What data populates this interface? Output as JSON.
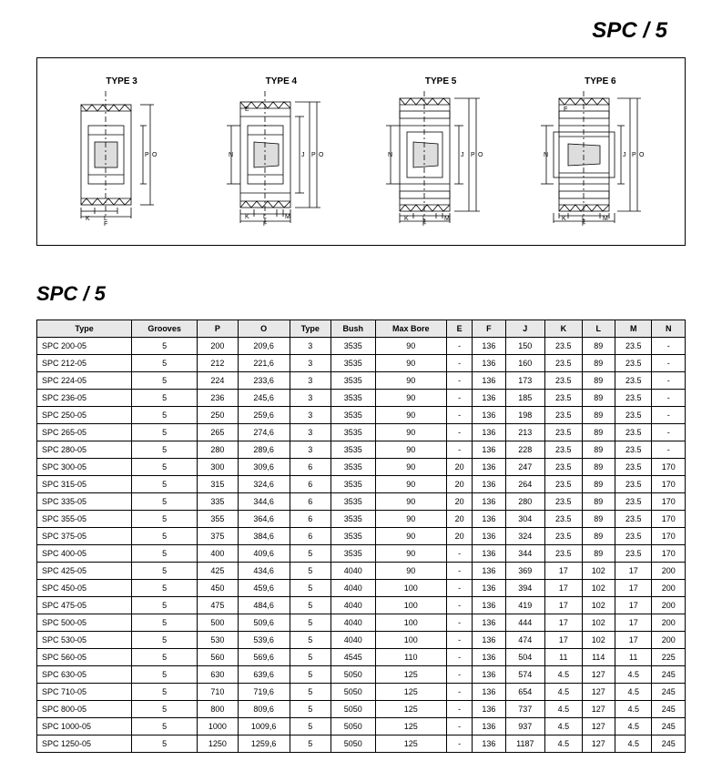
{
  "header_title": "SPC / 5",
  "section_title": "SPC / 5",
  "diagrams": {
    "labels": [
      "TYPE 3",
      "TYPE 4",
      "TYPE 5",
      "TYPE 6"
    ],
    "dim_labels": {
      "K": "K",
      "L": "L",
      "F": "F",
      "M": "M",
      "N": "N",
      "E": "E",
      "J": "J",
      "P": "P",
      "O": "O"
    }
  },
  "table": {
    "columns": [
      "Type",
      "Grooves",
      "P",
      "O",
      "Type",
      "Bush",
      "Max Bore",
      "E",
      "F",
      "J",
      "K",
      "L",
      "M",
      "N"
    ],
    "rows": [
      [
        "SPC  200-05",
        "5",
        "200",
        "209,6",
        "3",
        "3535",
        "90",
        "-",
        "136",
        "150",
        "23.5",
        "89",
        "23.5",
        "-"
      ],
      [
        "SPC  212-05",
        "5",
        "212",
        "221,6",
        "3",
        "3535",
        "90",
        "-",
        "136",
        "160",
        "23.5",
        "89",
        "23.5",
        "-"
      ],
      [
        "SPC  224-05",
        "5",
        "224",
        "233,6",
        "3",
        "3535",
        "90",
        "-",
        "136",
        "173",
        "23.5",
        "89",
        "23.5",
        "-"
      ],
      [
        "SPC  236-05",
        "5",
        "236",
        "245,6",
        "3",
        "3535",
        "90",
        "-",
        "136",
        "185",
        "23.5",
        "89",
        "23.5",
        "-"
      ],
      [
        "SPC  250-05",
        "5",
        "250",
        "259,6",
        "3",
        "3535",
        "90",
        "-",
        "136",
        "198",
        "23.5",
        "89",
        "23.5",
        "-"
      ],
      [
        "SPC  265-05",
        "5",
        "265",
        "274,6",
        "3",
        "3535",
        "90",
        "-",
        "136",
        "213",
        "23.5",
        "89",
        "23.5",
        "-"
      ],
      [
        "SPC  280-05",
        "5",
        "280",
        "289,6",
        "3",
        "3535",
        "90",
        "-",
        "136",
        "228",
        "23.5",
        "89",
        "23.5",
        "-"
      ],
      [
        "SPC  300-05",
        "5",
        "300",
        "309,6",
        "6",
        "3535",
        "90",
        "20",
        "136",
        "247",
        "23.5",
        "89",
        "23.5",
        "170"
      ],
      [
        "SPC  315-05",
        "5",
        "315",
        "324,6",
        "6",
        "3535",
        "90",
        "20",
        "136",
        "264",
        "23.5",
        "89",
        "23.5",
        "170"
      ],
      [
        "SPC  335-05",
        "5",
        "335",
        "344,6",
        "6",
        "3535",
        "90",
        "20",
        "136",
        "280",
        "23.5",
        "89",
        "23.5",
        "170"
      ],
      [
        "SPC  355-05",
        "5",
        "355",
        "364,6",
        "6",
        "3535",
        "90",
        "20",
        "136",
        "304",
        "23.5",
        "89",
        "23.5",
        "170"
      ],
      [
        "SPC  375-05",
        "5",
        "375",
        "384,6",
        "6",
        "3535",
        "90",
        "20",
        "136",
        "324",
        "23.5",
        "89",
        "23.5",
        "170"
      ],
      [
        "SPC  400-05",
        "5",
        "400",
        "409,6",
        "5",
        "3535",
        "90",
        "-",
        "136",
        "344",
        "23.5",
        "89",
        "23.5",
        "170"
      ],
      [
        "SPC  425-05",
        "5",
        "425",
        "434,6",
        "5",
        "4040",
        "90",
        "-",
        "136",
        "369",
        "17",
        "102",
        "17",
        "200"
      ],
      [
        "SPC  450-05",
        "5",
        "450",
        "459,6",
        "5",
        "4040",
        "100",
        "-",
        "136",
        "394",
        "17",
        "102",
        "17",
        "200"
      ],
      [
        "SPC  475-05",
        "5",
        "475",
        "484,6",
        "5",
        "4040",
        "100",
        "-",
        "136",
        "419",
        "17",
        "102",
        "17",
        "200"
      ],
      [
        "SPC  500-05",
        "5",
        "500",
        "509,6",
        "5",
        "4040",
        "100",
        "-",
        "136",
        "444",
        "17",
        "102",
        "17",
        "200"
      ],
      [
        "SPC  530-05",
        "5",
        "530",
        "539,6",
        "5",
        "4040",
        "100",
        "-",
        "136",
        "474",
        "17",
        "102",
        "17",
        "200"
      ],
      [
        "SPC  560-05",
        "5",
        "560",
        "569,6",
        "5",
        "4545",
        "110",
        "-",
        "136",
        "504",
        "11",
        "114",
        "11",
        "225"
      ],
      [
        "SPC  630-05",
        "5",
        "630",
        "639,6",
        "5",
        "5050",
        "125",
        "-",
        "136",
        "574",
        "4.5",
        "127",
        "4.5",
        "245"
      ],
      [
        "SPC  710-05",
        "5",
        "710",
        "719,6",
        "5",
        "5050",
        "125",
        "-",
        "136",
        "654",
        "4.5",
        "127",
        "4.5",
        "245"
      ],
      [
        "SPC  800-05",
        "5",
        "800",
        "809,6",
        "5",
        "5050",
        "125",
        "-",
        "136",
        "737",
        "4.5",
        "127",
        "4.5",
        "245"
      ],
      [
        "SPC  1000-05",
        "5",
        "1000",
        "1009,6",
        "5",
        "5050",
        "125",
        "-",
        "136",
        "937",
        "4.5",
        "127",
        "4.5",
        "245"
      ],
      [
        "SPC  1250-05",
        "5",
        "1250",
        "1259,6",
        "5",
        "5050",
        "125",
        "-",
        "136",
        "1187",
        "4.5",
        "127",
        "4.5",
        "245"
      ]
    ]
  }
}
